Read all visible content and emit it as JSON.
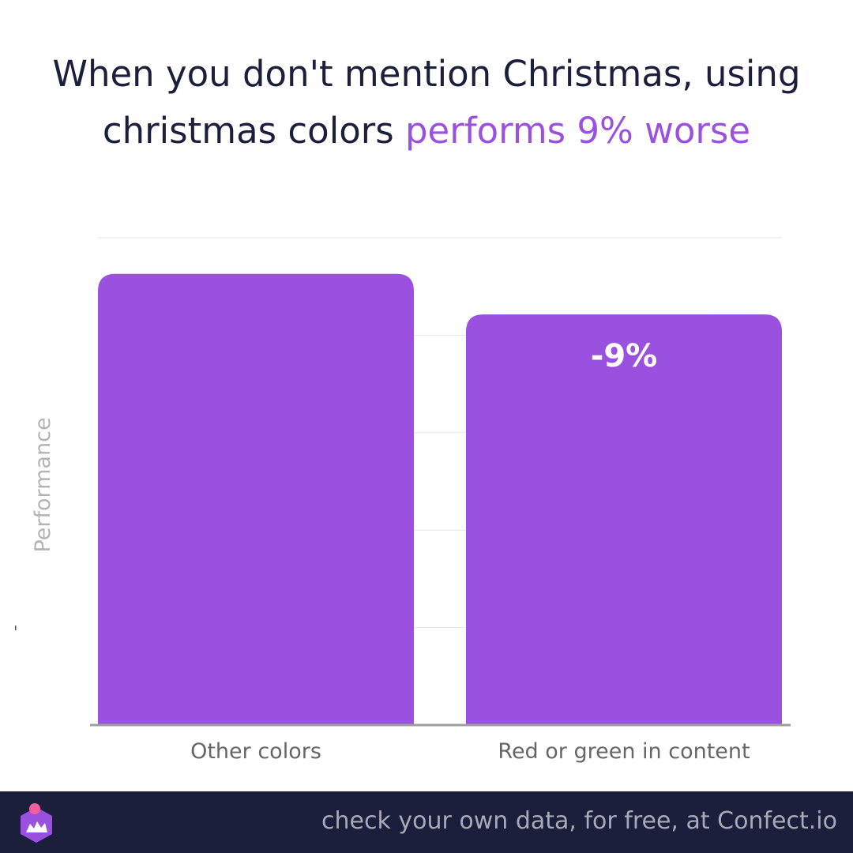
{
  "title": {
    "line1": "When you don't mention Christmas, using",
    "line2_start": "christmas colors ",
    "line2_highlight": "performs 9% worse"
  },
  "colors": {
    "bar": "#9b51e0",
    "highlight": "#9b51e0",
    "title_text": "#1b1f3b",
    "footer_bg": "#1b1f3b",
    "footer_text": "#a9aab9",
    "grid": "#e6e6e6",
    "axis": "#9e9e9e"
  },
  "chart_data": {
    "type": "bar",
    "categories": [
      "Other colors",
      "Red or green in content"
    ],
    "values": [
      100,
      91
    ],
    "data_labels": [
      "",
      "-9%"
    ],
    "ylabel": "Performance",
    "xlabel": "",
    "ylim": [
      0,
      108
    ],
    "grid": true,
    "legend": "none"
  },
  "footer": {
    "text": "check your own data, for free, at Confect.io",
    "logo_icon": "confect-logo-icon"
  }
}
